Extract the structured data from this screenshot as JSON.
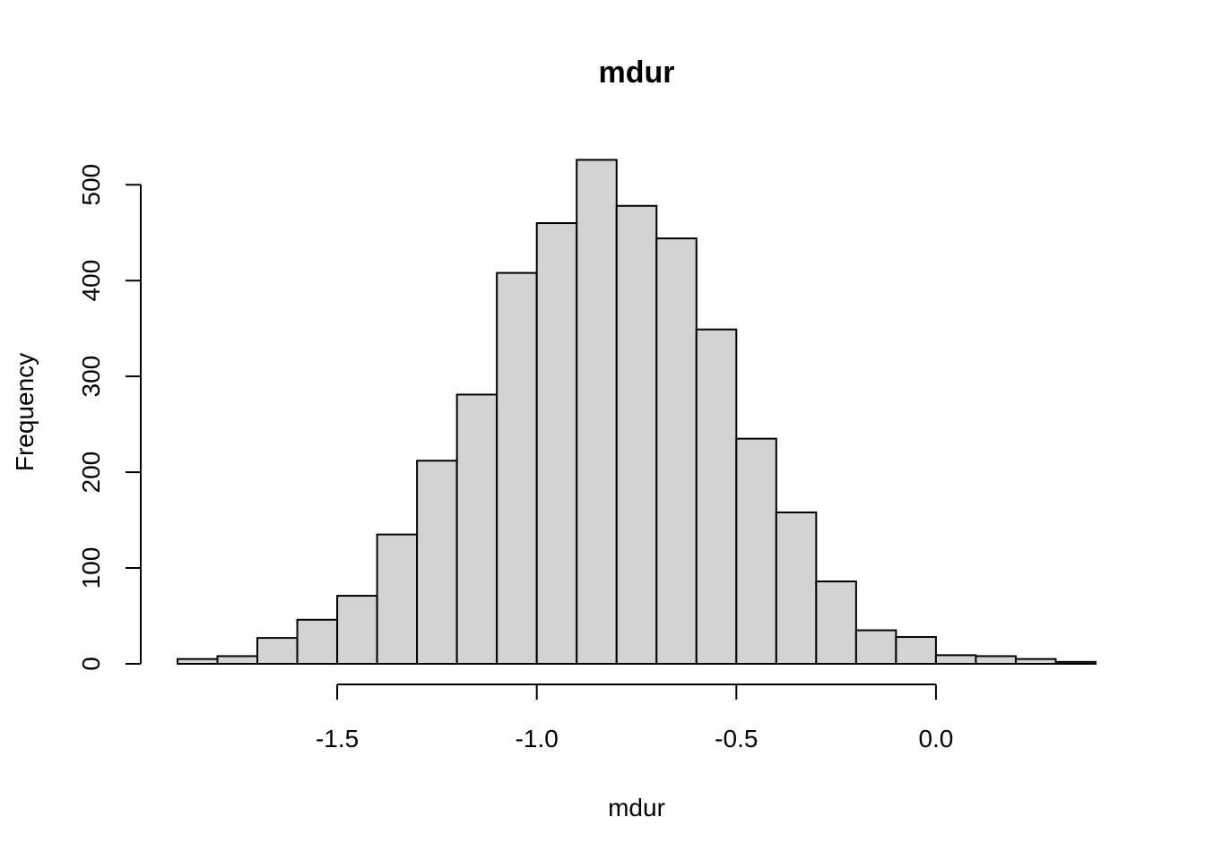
{
  "chart_data": {
    "type": "bar",
    "subtype": "histogram",
    "title": "mdur",
    "xlabel": "mdur",
    "ylabel": "Frequency",
    "bin_width": 0.1,
    "bins": [
      {
        "start": -1.9,
        "end": -1.8,
        "count": 5
      },
      {
        "start": -1.8,
        "end": -1.7,
        "count": 8
      },
      {
        "start": -1.7,
        "end": -1.6,
        "count": 27
      },
      {
        "start": -1.6,
        "end": -1.5,
        "count": 46
      },
      {
        "start": -1.5,
        "end": -1.4,
        "count": 71
      },
      {
        "start": -1.4,
        "end": -1.3,
        "count": 135
      },
      {
        "start": -1.3,
        "end": -1.2,
        "count": 212
      },
      {
        "start": -1.2,
        "end": -1.1,
        "count": 281
      },
      {
        "start": -1.1,
        "end": -1.0,
        "count": 408
      },
      {
        "start": -1.0,
        "end": -0.9,
        "count": 460
      },
      {
        "start": -0.9,
        "end": -0.8,
        "count": 526
      },
      {
        "start": -0.8,
        "end": -0.7,
        "count": 478
      },
      {
        "start": -0.7,
        "end": -0.6,
        "count": 444
      },
      {
        "start": -0.6,
        "end": -0.5,
        "count": 349
      },
      {
        "start": -0.5,
        "end": -0.4,
        "count": 235
      },
      {
        "start": -0.4,
        "end": -0.3,
        "count": 158
      },
      {
        "start": -0.3,
        "end": -0.2,
        "count": 86
      },
      {
        "start": -0.2,
        "end": -0.1,
        "count": 35
      },
      {
        "start": -0.1,
        "end": 0.0,
        "count": 28
      },
      {
        "start": 0.0,
        "end": 0.1,
        "count": 9
      },
      {
        "start": 0.1,
        "end": 0.2,
        "count": 8
      },
      {
        "start": 0.2,
        "end": 0.3,
        "count": 5
      },
      {
        "start": 0.3,
        "end": 0.4,
        "count": 2
      }
    ],
    "xlim": [
      -1.9,
      0.4
    ],
    "ylim": [
      0,
      550
    ],
    "x_ticks": [
      -1.5,
      -1.0,
      -0.5,
      0.0
    ],
    "x_tick_labels": [
      "-1.5",
      "-1.0",
      "-0.5",
      "0.0"
    ],
    "y_ticks": [
      0,
      100,
      200,
      300,
      400,
      500
    ],
    "y_tick_labels": [
      "0",
      "100",
      "200",
      "300",
      "400",
      "500"
    ],
    "grid": false,
    "legend": "none",
    "colors": {
      "bar_fill": "#d3d3d3",
      "bar_stroke": "#000000",
      "axis": "#000000",
      "background": "#ffffff"
    }
  }
}
